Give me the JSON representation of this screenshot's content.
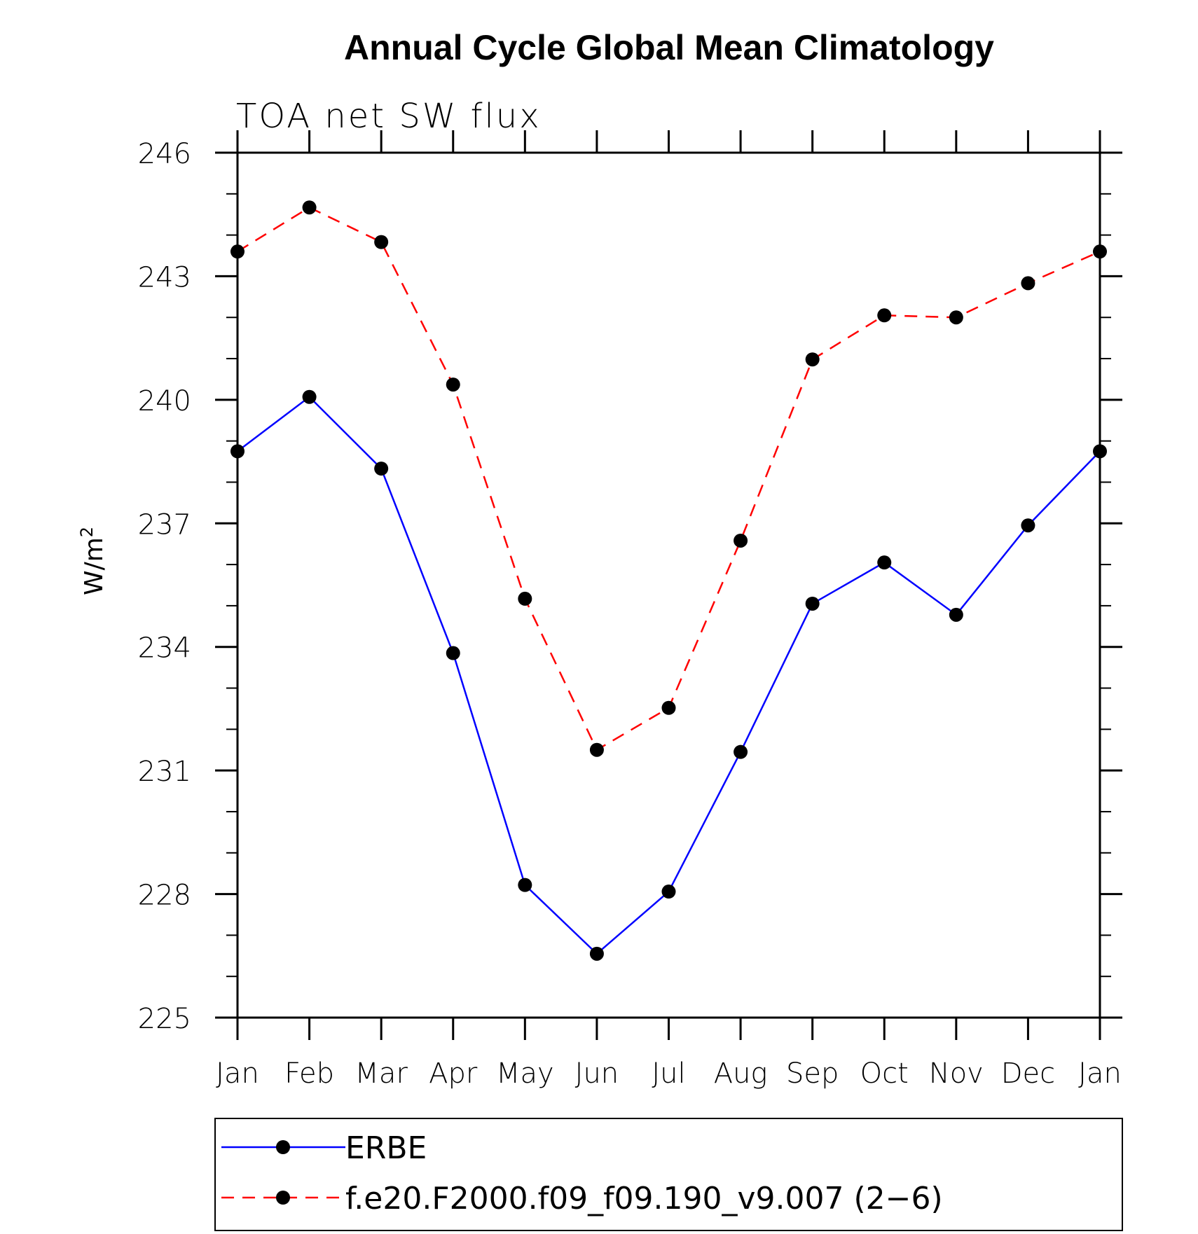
{
  "chart_data": {
    "type": "line",
    "title": "Annual Cycle Global Mean Climatology",
    "subtitle": "TOA net SW flux",
    "ylabel": "W/m",
    "ylabel_superscript": "2",
    "categories": [
      "Jan",
      "Feb",
      "Mar",
      "Apr",
      "May",
      "Jun",
      "Jul",
      "Aug",
      "Sep",
      "Oct",
      "Nov",
      "Dec",
      "Jan"
    ],
    "ylim": [
      225,
      246
    ],
    "yticks": [
      "246",
      "243",
      "240",
      "237",
      "234",
      "231",
      "228",
      "225"
    ],
    "ytick_values": [
      246,
      243,
      240,
      237,
      234,
      231,
      228,
      225
    ],
    "minor_step": 1,
    "grid": false,
    "legend_position": "bottom",
    "series": [
      {
        "name": "ERBE",
        "color": "#0000ff",
        "dash": "solid",
        "values": [
          238.75,
          240.07,
          238.33,
          233.85,
          228.22,
          226.55,
          228.06,
          231.45,
          235.05,
          236.05,
          234.78,
          236.95,
          238.75
        ]
      },
      {
        "name": "f.e20.F2000.f09_f09.190_v9.007 (2−6)",
        "color": "#ff0000",
        "dash": "dashed",
        "values": [
          243.6,
          244.67,
          243.83,
          240.37,
          235.17,
          231.5,
          232.52,
          236.58,
          240.98,
          242.05,
          242.0,
          242.83,
          243.6
        ]
      }
    ]
  }
}
